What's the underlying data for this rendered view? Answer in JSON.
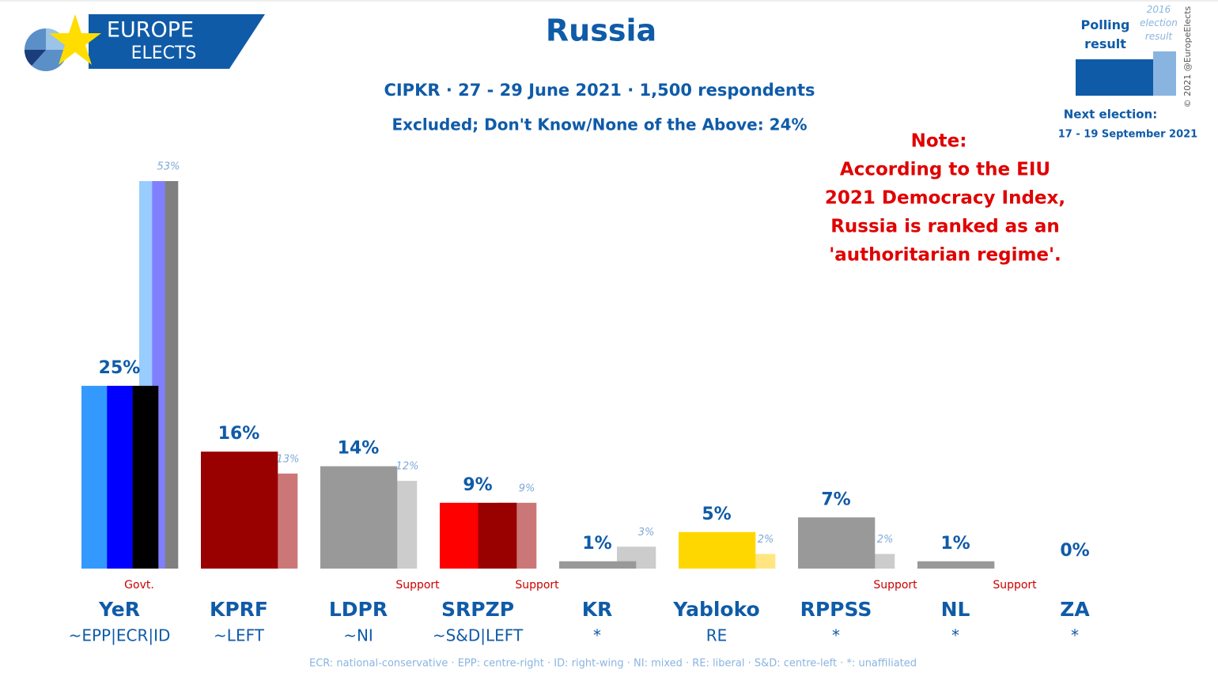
{
  "logo": {
    "line1": "EUROPE",
    "line2": "ELECTS"
  },
  "chart_data": {
    "type": "bar",
    "title": "Russia",
    "subtitle": "CIPKR · 27 - 29 June 2021 · 1,500 respondents",
    "subtitle2": "Excluded; Don't Know/None of the Above: 24%",
    "categories": [
      "YeR",
      "KPRF",
      "LDPR",
      "SRPZP",
      "KR",
      "Yabloko",
      "RPPSS",
      "NL",
      "ZA"
    ],
    "groups": [
      "~EPP|ECR|ID",
      "~LEFT",
      "~NI",
      "~S&D|LEFT",
      "*",
      "RE",
      "*",
      "*",
      "*"
    ],
    "status": [
      "Govt.",
      null,
      "Support",
      "Support",
      null,
      null,
      "Support",
      "Support",
      null
    ],
    "series": [
      {
        "name": "Polling result",
        "color": "#0f5ba8",
        "colors": [
          [
            "#3399ff",
            "#0000ff",
            "#000000"
          ],
          [
            "#990000"
          ],
          [
            "#999999"
          ],
          [
            "#ff0000",
            "#990000"
          ],
          [
            "#999999"
          ],
          [
            "#ffd700"
          ],
          [
            "#999999"
          ],
          [
            "#999999"
          ],
          [
            "#999999"
          ]
        ],
        "values": [
          25,
          16,
          14,
          9,
          1,
          5,
          7,
          1,
          0
        ],
        "value_labels": [
          "25%",
          "16%",
          "14%",
          "9%",
          "1%",
          "5%",
          "7%",
          "1%",
          "0%"
        ]
      },
      {
        "name": "2016 election result",
        "color": "#8ab4e0",
        "colors": [
          [
            "#99ccff",
            "#8080ff",
            "#808080"
          ],
          [
            "#cc7777"
          ],
          [
            "#cccccc"
          ],
          [
            "#cc7777"
          ],
          [
            "#cccccc"
          ],
          [
            "#ffe680"
          ],
          [
            "#cccccc"
          ],
          [
            "#cccccc"
          ],
          [
            "#cccccc"
          ]
        ],
        "values": [
          53,
          13,
          12,
          9,
          3,
          2,
          2,
          null,
          null
        ],
        "value_labels": [
          "53%",
          "13%",
          "12%",
          "9%",
          "3%",
          "2%",
          "2%",
          null,
          null
        ]
      }
    ],
    "ylim": [
      0,
      53
    ],
    "note": {
      "title": "Note:",
      "lines": [
        "According to the EIU",
        "2021 Democracy Index,",
        "Russia is ranked as an",
        "'authoritarian regime'."
      ]
    },
    "next_election": {
      "label": "Next election:",
      "date": "17 - 19 September 2021"
    },
    "copyright": "© 2021 @EuropeElects",
    "footnote": "ECR: national-conservative · EPP: centre-right · ID: right-wing · NI: mixed · RE: liberal · S&D: centre-left · *: unaffiliated"
  }
}
